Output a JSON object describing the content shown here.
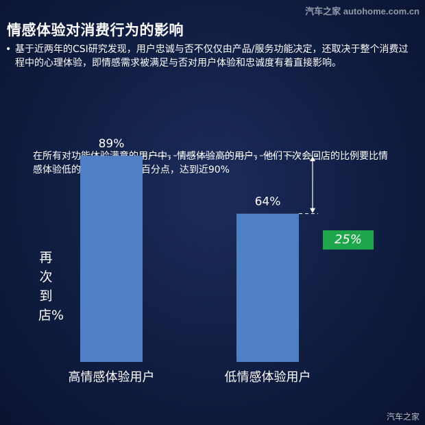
{
  "watermark": {
    "top": "汽车之家 autohome.com.cn",
    "bottom": "汽车之家"
  },
  "page_title": "情感体验对消费行为的影响",
  "bullet_text": "基于近两年的CSI研究发现，用户忠诚与否不仅仅由产品/服务功能决定，还取决于整个消费过程中的心理体验，即情感需求被满足与否对用户体验和忠诚度有着直接影响。",
  "intro_text": "在所有对功能体验满意的用户中，情感体验高的用户，他们下次会回店的比例要比情感体验低的用户高出25个百分点，达到近90%",
  "colors": {
    "bar": "#4f7fc4",
    "badge": "#1fa64a",
    "background": "#122046"
  },
  "chart_data": {
    "type": "bar",
    "categories": [
      "高情感体验用户",
      "低情感体验用户"
    ],
    "values": [
      89,
      64
    ],
    "data_labels": [
      "89%",
      "64%"
    ],
    "title": "",
    "xlabel": "",
    "ylabel": "再次到店%",
    "ylim": [
      0,
      100
    ],
    "grid": false,
    "annotation": {
      "text": "25%",
      "from_value": 89,
      "to_value": 64
    }
  }
}
